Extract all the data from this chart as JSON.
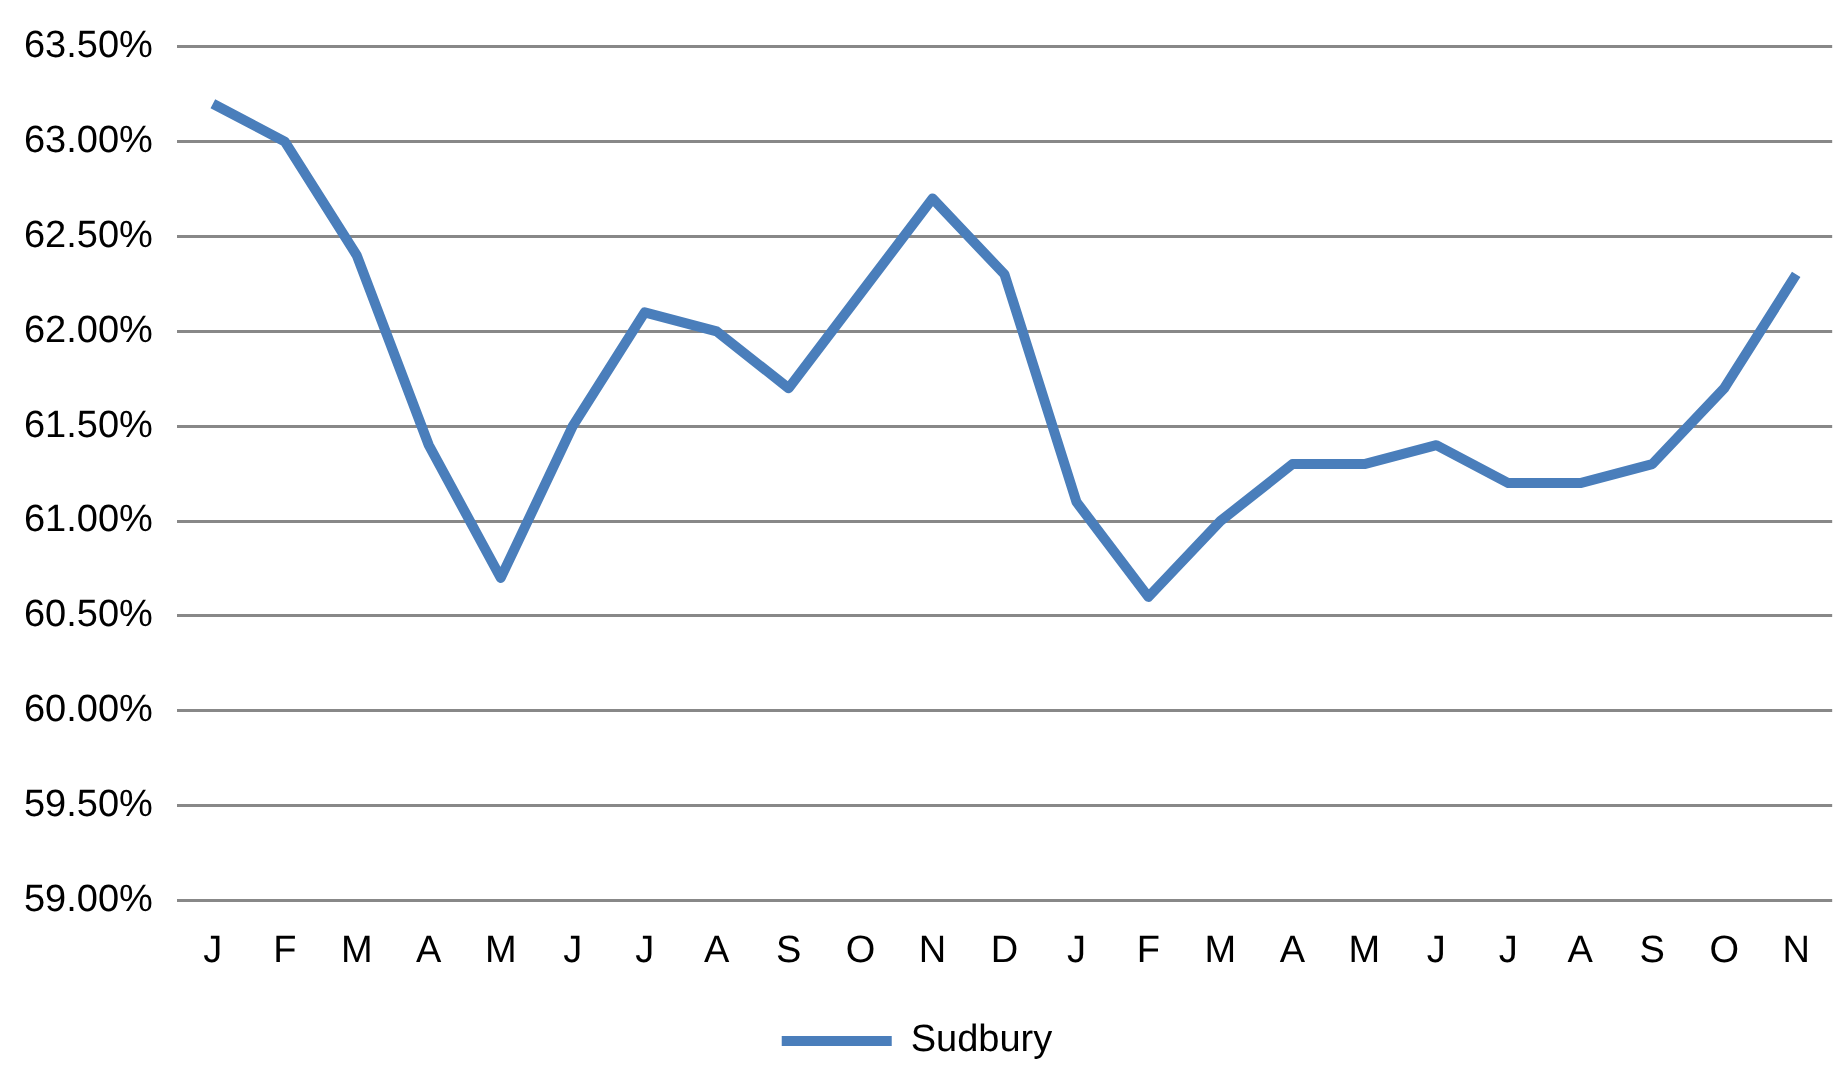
{
  "chart_data": {
    "type": "line",
    "categories": [
      "J",
      "F",
      "M",
      "A",
      "M",
      "J",
      "J",
      "A",
      "S",
      "O",
      "N",
      "D",
      "J",
      "F",
      "M",
      "A",
      "M",
      "J",
      "J",
      "A",
      "S",
      "O",
      "N"
    ],
    "series": [
      {
        "name": "Sudbury",
        "color": "#4a7ebb",
        "values": [
          63.2,
          63.0,
          62.4,
          61.4,
          60.7,
          61.5,
          62.1,
          62.0,
          61.7,
          62.2,
          62.7,
          62.3,
          61.1,
          60.6,
          61.0,
          61.3,
          61.3,
          61.4,
          61.2,
          61.2,
          61.3,
          61.7,
          62.3
        ]
      }
    ],
    "ylim": [
      59,
      63.5
    ],
    "yticks": [
      {
        "value": 59,
        "label": "59.00%"
      },
      {
        "value": 59.5,
        "label": "59.50%"
      },
      {
        "value": 60,
        "label": "60.00%"
      },
      {
        "value": 60.5,
        "label": "60.50%"
      },
      {
        "value": 61,
        "label": "61.00%"
      },
      {
        "value": 61.5,
        "label": "61.50%"
      },
      {
        "value": 62,
        "label": "62.00%"
      },
      {
        "value": 62.5,
        "label": "62.50%"
      },
      {
        "value": 63,
        "label": "63.00%"
      },
      {
        "value": 63.5,
        "label": "63.50%"
      }
    ],
    "grid": "y",
    "legend": "bottom",
    "marker": "none",
    "line_style": "solid"
  }
}
